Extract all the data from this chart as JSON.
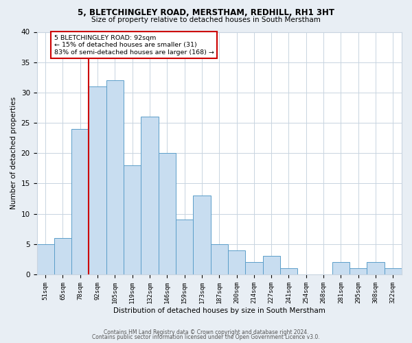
{
  "title1": "5, BLETCHINGLEY ROAD, MERSTHAM, REDHILL, RH1 3HT",
  "title2": "Size of property relative to detached houses in South Merstham",
  "xlabel": "Distribution of detached houses by size in South Merstham",
  "ylabel": "Number of detached properties",
  "bar_labels": [
    "51sqm",
    "65sqm",
    "78sqm",
    "92sqm",
    "105sqm",
    "119sqm",
    "132sqm",
    "146sqm",
    "159sqm",
    "173sqm",
    "187sqm",
    "200sqm",
    "214sqm",
    "227sqm",
    "241sqm",
    "254sqm",
    "268sqm",
    "281sqm",
    "295sqm",
    "308sqm",
    "322sqm"
  ],
  "bar_values": [
    5,
    6,
    24,
    31,
    32,
    18,
    26,
    20,
    9,
    13,
    5,
    4,
    2,
    3,
    1,
    0,
    0,
    2,
    1,
    2,
    1
  ],
  "bar_color": "#c8ddf0",
  "bar_edge_color": "#5b9ec9",
  "vline_index": 3,
  "vline_color": "#cc0000",
  "annotation_line1": "5 BLETCHINGLEY ROAD: 92sqm",
  "annotation_line2": "← 15% of detached houses are smaller (31)",
  "annotation_line3": "83% of semi-detached houses are larger (168) →",
  "box_edge_color": "#cc0000",
  "ylim": [
    0,
    40
  ],
  "yticks": [
    0,
    5,
    10,
    15,
    20,
    25,
    30,
    35,
    40
  ],
  "footer1": "Contains HM Land Registry data © Crown copyright and database right 2024.",
  "footer2": "Contains public sector information licensed under the Open Government Licence v3.0.",
  "bg_color": "#e8eef4",
  "plot_bg_color": "#ffffff",
  "grid_color": "#c8d4e0"
}
